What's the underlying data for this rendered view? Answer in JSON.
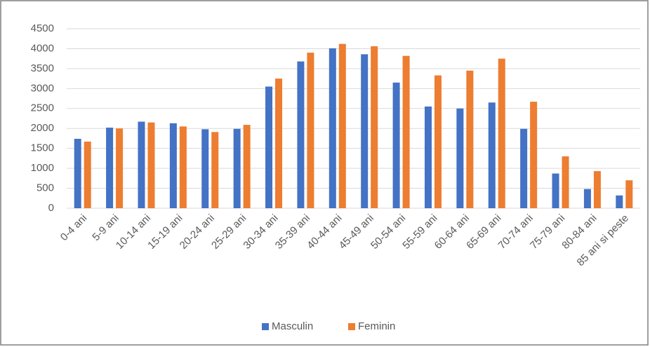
{
  "chart_data": {
    "type": "bar",
    "categories": [
      "0-4 ani",
      "5-9 ani",
      "10-14 ani",
      "15-19 ani",
      "20-24 ani",
      "25-29 ani",
      "30-34 ani",
      "35-39 ani",
      "40-44 ani",
      "45-49 ani",
      "50-54 ani",
      "55-59 ani",
      "60-64 ani",
      "65-69 ani",
      "70-74 ani",
      "75-79 ani",
      "80-84 ani",
      "85 ani si peste"
    ],
    "series": [
      {
        "name": "Masculin",
        "color": "#4472c4",
        "values": [
          1740,
          2020,
          2170,
          2130,
          1980,
          1990,
          3050,
          3680,
          4010,
          3860,
          3150,
          2550,
          2500,
          2650,
          1990,
          870,
          480,
          320
        ]
      },
      {
        "name": "Feminin",
        "color": "#ed7d31",
        "values": [
          1670,
          2000,
          2150,
          2050,
          1910,
          2090,
          3250,
          3900,
          4120,
          4060,
          3820,
          3330,
          3450,
          3750,
          2670,
          1300,
          930,
          700
        ]
      }
    ],
    "ylim": [
      0,
      4500
    ],
    "yticks": [
      0,
      500,
      1000,
      1500,
      2000,
      2500,
      3000,
      3500,
      4000,
      4500
    ],
    "grid": true,
    "legend": "bottom"
  }
}
